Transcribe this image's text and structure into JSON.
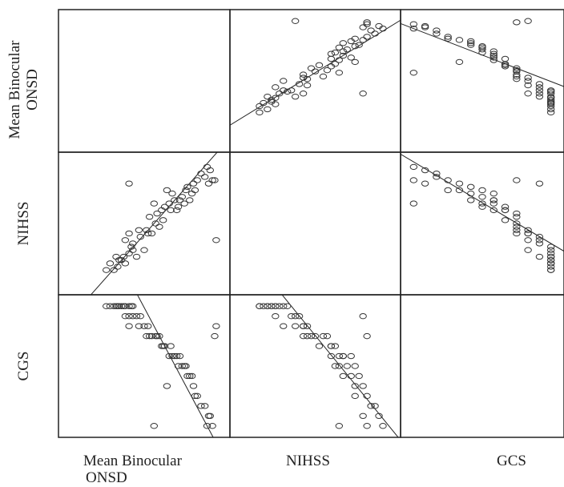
{
  "chart_data": {
    "type": "scatter_matrix",
    "variables": [
      "Mean Binocular ONSD",
      "NIHSS",
      "CGS"
    ],
    "row_labels": [
      "Mean Binocular ONSD",
      "NIHSS",
      "CGS"
    ],
    "col_labels": [
      "Mean Binocular ONSD",
      "NIHSS",
      "GCS"
    ],
    "xlabels": {
      "col1_line1": "Mean Binocular",
      "col1_line2": "ONSD",
      "col2": "NIHSS",
      "col3": "GCS"
    },
    "ylabels": {
      "row1_line1": "Mean Binocular",
      "row1_line2": "ONSD",
      "row2": "NIHSS",
      "row3": "CGS"
    },
    "ranges": {
      "onsd": [
        4.5,
        6.4
      ],
      "nihss": [
        0,
        36
      ],
      "gcs": [
        3,
        15
      ]
    },
    "fit_lines": {
      "nihss_onsd": {
        "onsd_at_nihss0": 4.88,
        "onsd_at_nihss36": 6.28
      },
      "gcs_onsd": {
        "onsd_at_gcs3": 6.28,
        "onsd_at_gcs15": 5.44
      },
      "gcs_nihss": {
        "nihss_at_gcs3": 36.5,
        "nihss_at_gcs15": 12.0
      }
    },
    "points": [
      {
        "onsd": 5.1,
        "nihss": 5,
        "gcs": 15
      },
      {
        "onsd": 5.05,
        "nihss": 4,
        "gcs": 15
      },
      {
        "onsd": 4.95,
        "nihss": 4,
        "gcs": 15
      },
      {
        "onsd": 5.0,
        "nihss": 6,
        "gcs": 15
      },
      {
        "onsd": 5.15,
        "nihss": 7,
        "gcs": 15
      },
      {
        "onsd": 5.08,
        "nihss": 8,
        "gcs": 15
      },
      {
        "onsd": 5.12,
        "nihss": 7,
        "gcs": 15
      },
      {
        "onsd": 5.18,
        "nihss": 8,
        "gcs": 15
      },
      {
        "onsd": 5.2,
        "nihss": 6,
        "gcs": 15
      },
      {
        "onsd": 5.25,
        "nihss": 9,
        "gcs": 15
      },
      {
        "onsd": 5.3,
        "nihss": 10,
        "gcs": 15
      },
      {
        "onsd": 5.28,
        "nihss": 11,
        "gcs": 15
      },
      {
        "onsd": 5.35,
        "nihss": 8,
        "gcs": 14
      },
      {
        "onsd": 5.2,
        "nihss": 13,
        "gcs": 14
      },
      {
        "onsd": 5.3,
        "nihss": 12,
        "gcs": 14
      },
      {
        "onsd": 5.4,
        "nihss": 14,
        "gcs": 14
      },
      {
        "onsd": 5.45,
        "nihss": 10,
        "gcs": 13
      },
      {
        "onsd": 5.25,
        "nihss": 15,
        "gcs": 13
      },
      {
        "onsd": 5.38,
        "nihss": 16,
        "gcs": 13
      },
      {
        "onsd": 5.5,
        "nihss": 15,
        "gcs": 13
      },
      {
        "onsd": 5.48,
        "nihss": 16,
        "gcs": 12
      },
      {
        "onsd": 5.55,
        "nihss": 15,
        "gcs": 12
      },
      {
        "onsd": 5.6,
        "nihss": 18,
        "gcs": 12
      },
      {
        "onsd": 5.65,
        "nihss": 17,
        "gcs": 12
      },
      {
        "onsd": 5.52,
        "nihss": 20,
        "gcs": 12
      },
      {
        "onsd": 5.62,
        "nihss": 21,
        "gcs": 12
      },
      {
        "onsd": 5.7,
        "nihss": 19,
        "gcs": 11
      },
      {
        "onsd": 5.68,
        "nihss": 22,
        "gcs": 11
      },
      {
        "onsd": 5.72,
        "nihss": 23,
        "gcs": 11
      },
      {
        "onsd": 5.8,
        "nihss": 22,
        "gcs": 11
      },
      {
        "onsd": 5.78,
        "nihss": 24,
        "gcs": 10
      },
      {
        "onsd": 5.85,
        "nihss": 25,
        "gcs": 10
      },
      {
        "onsd": 5.88,
        "nihss": 22,
        "gcs": 10
      },
      {
        "onsd": 5.82,
        "nihss": 27,
        "gcs": 10
      },
      {
        "onsd": 5.92,
        "nihss": 25,
        "gcs": 10
      },
      {
        "onsd": 5.9,
        "nihss": 23,
        "gcs": 9
      },
      {
        "onsd": 5.95,
        "nihss": 26,
        "gcs": 9
      },
      {
        "onsd": 5.98,
        "nihss": 24,
        "gcs": 9
      },
      {
        "onsd": 6.0,
        "nihss": 28,
        "gcs": 9
      },
      {
        "onsd": 6.05,
        "nihss": 25,
        "gcs": 8
      },
      {
        "onsd": 6.08,
        "nihss": 27,
        "gcs": 8
      },
      {
        "onsd": 6.02,
        "nihss": 29,
        "gcs": 8
      },
      {
        "onsd": 5.75,
        "nihss": 28,
        "gcs": 7
      },
      {
        "onsd": 6.1,
        "nihss": 30,
        "gcs": 7
      },
      {
        "onsd": 6.12,
        "nihss": 28,
        "gcs": 6
      },
      {
        "onsd": 6.15,
        "nihss": 31,
        "gcs": 6
      },
      {
        "onsd": 6.2,
        "nihss": 33,
        "gcs": 5
      },
      {
        "onsd": 6.25,
        "nihss": 32,
        "gcs": 5
      },
      {
        "onsd": 6.3,
        "nihss": 30,
        "gcs": 4
      },
      {
        "onsd": 6.32,
        "nihss": 34,
        "gcs": 4
      },
      {
        "onsd": 6.35,
        "nihss": 31,
        "gcs": 3
      },
      {
        "onsd": 6.28,
        "nihss": 35,
        "gcs": 3
      },
      {
        "onsd": 5.58,
        "nihss": 24,
        "gcs": 3
      },
      {
        "onsd": 6.4,
        "nihss": 13,
        "gcs": 13
      },
      {
        "onsd": 6.38,
        "nihss": 31,
        "gcs": 12
      },
      {
        "onsd": 5.25,
        "nihss": 30,
        "gcs": 14
      }
    ],
    "marker": "open circle",
    "grid": false
  },
  "style": {
    "marker_color": "#333333",
    "frame_color": "#222222"
  }
}
